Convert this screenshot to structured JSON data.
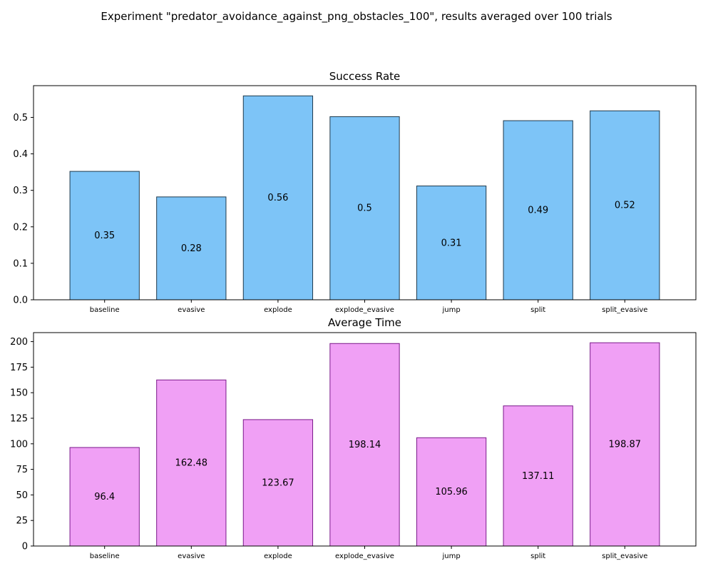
{
  "figure": {
    "suptitle": "Experiment \"predator_avoidance_against_png_obstacles_100\", results averaged over 100 trials"
  },
  "chart_data": [
    {
      "type": "bar",
      "title": "Success Rate",
      "categories": [
        "baseline",
        "evasive",
        "explode",
        "explode_evasive",
        "jump",
        "split",
        "split_evasive"
      ],
      "values": [
        0.35,
        0.28,
        0.56,
        0.5,
        0.31,
        0.49,
        0.52
      ],
      "bar_heights": [
        0.352,
        0.282,
        0.559,
        0.502,
        0.312,
        0.491,
        0.518
      ],
      "data_labels": [
        "0.35",
        "0.28",
        "0.56",
        "0.5",
        "0.31",
        "0.49",
        "0.52"
      ],
      "ylim": [
        0,
        0.587
      ],
      "yticks": [
        0.0,
        0.1,
        0.2,
        0.3,
        0.4,
        0.5
      ],
      "ytick_labels": [
        "0.0",
        "0.1",
        "0.2",
        "0.3",
        "0.4",
        "0.5"
      ],
      "xlabel": "",
      "ylabel": "",
      "grid": false,
      "bar_color": "#7dc4f7",
      "edge_color": "#1f3a4d"
    },
    {
      "type": "bar",
      "title": "Average Time",
      "categories": [
        "baseline",
        "evasive",
        "explode",
        "explode_evasive",
        "jump",
        "split",
        "split_evasive"
      ],
      "values": [
        96.4,
        162.48,
        123.67,
        198.14,
        105.96,
        137.11,
        198.87
      ],
      "data_labels": [
        "96.4",
        "162.48",
        "123.67",
        "198.14",
        "105.96",
        "137.11",
        "198.87"
      ],
      "ylim": [
        0,
        208.8
      ],
      "yticks": [
        0,
        25,
        50,
        75,
        100,
        125,
        150,
        175,
        200
      ],
      "ytick_labels": [
        "0",
        "25",
        "50",
        "75",
        "100",
        "125",
        "150",
        "175",
        "200"
      ],
      "xlabel": "",
      "ylabel": "",
      "grid": false,
      "bar_color": "#f0a0f5",
      "edge_color": "#7a1a8a"
    }
  ]
}
